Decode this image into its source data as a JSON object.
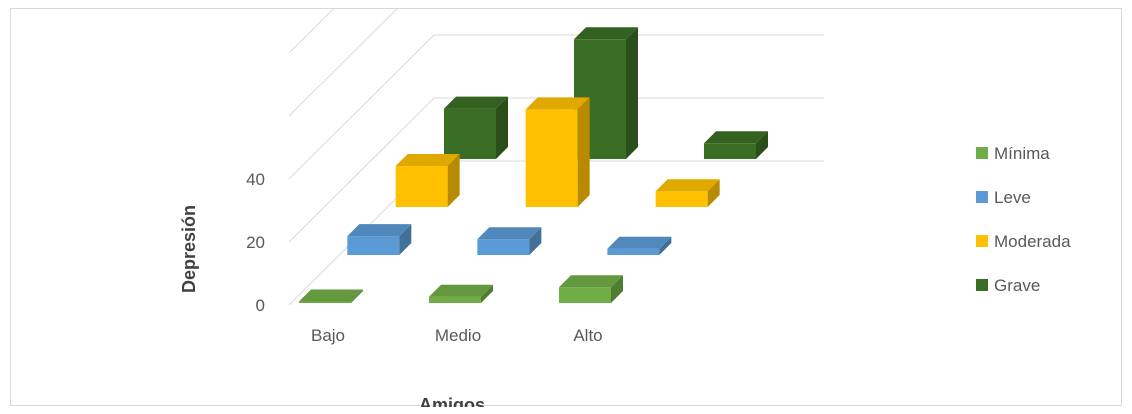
{
  "chart_data": {
    "type": "bar",
    "subtype": "3d-clustered-column",
    "title": "",
    "xlabel": "Amigos",
    "ylabel": "Depresión",
    "categories": [
      "Bajo",
      "Medio",
      "Alto"
    ],
    "yticks": [
      0,
      20,
      40
    ],
    "ylim": [
      0,
      80
    ],
    "grid": true,
    "legend_position": "right",
    "series": [
      {
        "name": "Mínima",
        "color": "#70ad47",
        "values": [
          0,
          2,
          5
        ]
      },
      {
        "name": "Leve",
        "color": "#5b9bd5",
        "values": [
          6,
          5,
          2
        ]
      },
      {
        "name": "Moderada",
        "color": "#ffc000",
        "values": [
          13,
          31,
          5
        ]
      },
      {
        "name": "Grave",
        "color": "#3a6e24",
        "values": [
          16,
          38,
          5
        ]
      }
    ]
  }
}
